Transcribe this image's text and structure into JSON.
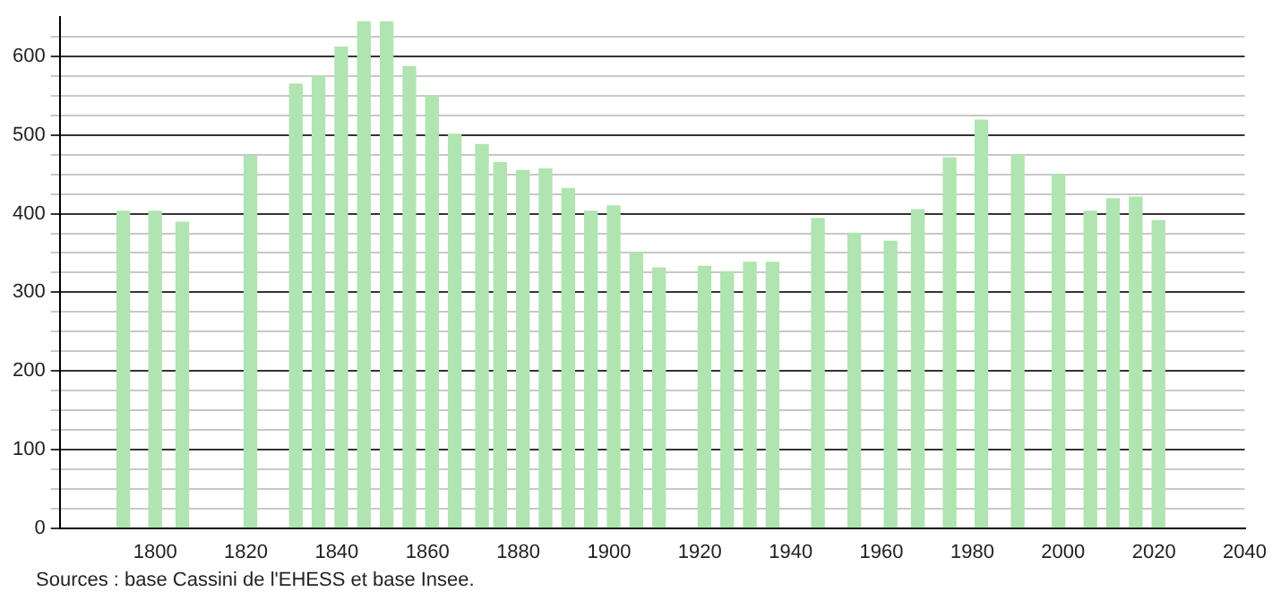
{
  "chart_data": {
    "type": "bar",
    "color": "#b0e4b0",
    "x": [
      1793,
      1800,
      1806,
      1821,
      1831,
      1836,
      1841,
      1846,
      1851,
      1856,
      1861,
      1866,
      1872,
      1876,
      1881,
      1886,
      1891,
      1896,
      1901,
      1906,
      1911,
      1921,
      1926,
      1931,
      1936,
      1946,
      1954,
      1962,
      1968,
      1975,
      1982,
      1990,
      1999,
      2006,
      2011,
      2016,
      2021
    ],
    "values": [
      403,
      403,
      389,
      473,
      565,
      575,
      612,
      644,
      644,
      587,
      550,
      501,
      488,
      465,
      455,
      457,
      432,
      403,
      410,
      350,
      331,
      333,
      326,
      338,
      338,
      394,
      375,
      365,
      405,
      471,
      519,
      474,
      450,
      403,
      419,
      421,
      391
    ],
    "xlim": [
      1779,
      2040
    ],
    "xticks": [
      1800,
      1820,
      1840,
      1860,
      1880,
      1900,
      1920,
      1940,
      1960,
      1980,
      2000,
      2020,
      2040
    ],
    "ylim": [
      0,
      650
    ],
    "yticks": [
      0,
      {
        "value": 25,
        "label": null
      },
      {
        "value": 50,
        "label": null
      },
      {
        "value": 75,
        "label": null
      },
      100,
      {
        "value": 125,
        "label": null
      },
      {
        "value": 150,
        "label": null
      },
      {
        "value": 175,
        "label": null
      },
      200,
      {
        "value": 225,
        "label": null
      },
      {
        "value": 250,
        "label": null
      },
      {
        "value": 275,
        "label": null
      },
      300,
      {
        "value": 325,
        "label": null
      },
      {
        "value": 350,
        "label": null
      },
      {
        "value": 375,
        "label": null
      },
      400,
      {
        "value": 425,
        "label": null
      },
      {
        "value": 450,
        "label": null
      },
      {
        "value": 475,
        "label": null
      },
      500,
      {
        "value": 525,
        "label": null
      },
      {
        "value": 550,
        "label": null
      },
      {
        "value": 575,
        "label": null
      },
      600,
      {
        "value": 625,
        "label": null
      }
    ],
    "grid": "y",
    "legend": false,
    "annotations": [
      "Sources : base Cassini de l'EHESS et base Insee."
    ]
  }
}
